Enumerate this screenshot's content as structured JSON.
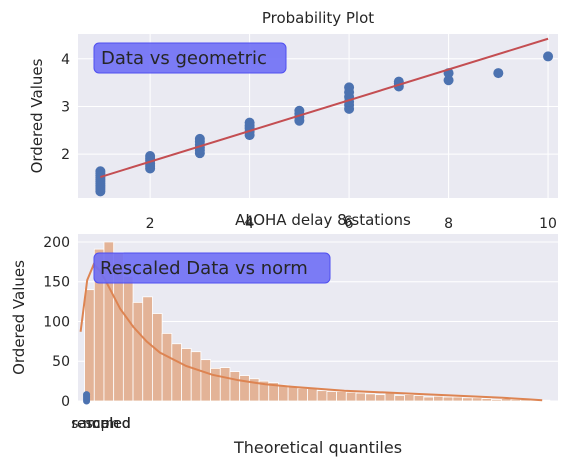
{
  "chart_data": [
    {
      "type": "scatter",
      "title": "Probability Plot",
      "xlabel": "",
      "ylabel": "Ordered Values",
      "annotation": "Data vs geometric",
      "xlim": [
        0.55,
        10.2
      ],
      "ylim": [
        1.08,
        4.52
      ],
      "xticks": [
        2,
        4,
        6,
        8,
        10
      ],
      "yticks": [
        2,
        3,
        4
      ],
      "grid": true,
      "colors": {
        "points": "#4c72b0",
        "fit_line": "#c44e52",
        "annotation_box": "#6f6ff5",
        "background": "#eaeaf2"
      },
      "points": [
        {
          "x": 1,
          "y_values": [
            1.22,
            1.27,
            1.31,
            1.35,
            1.39,
            1.43,
            1.47,
            1.51,
            1.55,
            1.6,
            1.64
          ]
        },
        {
          "x": 2,
          "y_values": [
            1.7,
            1.75,
            1.8,
            1.86,
            1.91,
            1.96
          ]
        },
        {
          "x": 3,
          "y_values": [
            2.02,
            2.08,
            2.14,
            2.2,
            2.26,
            2.32
          ]
        },
        {
          "x": 4,
          "y_values": [
            2.4,
            2.47,
            2.54,
            2.6,
            2.66
          ]
        },
        {
          "x": 5,
          "y_values": [
            2.7,
            2.78,
            2.85,
            2.91
          ]
        },
        {
          "x": 6,
          "y_values": [
            2.95,
            3.03,
            3.1,
            3.2,
            3.3,
            3.4
          ]
        },
        {
          "x": 7,
          "y_values": [
            3.42,
            3.48,
            3.52
          ]
        },
        {
          "x": 8,
          "y_values": [
            3.55,
            3.7
          ]
        },
        {
          "x": 9,
          "y_values": [
            3.7
          ]
        },
        {
          "x": 10,
          "y_values": [
            4.05
          ]
        }
      ],
      "fit_line": {
        "x": [
          1,
          10
        ],
        "y": [
          1.52,
          4.42
        ]
      }
    },
    {
      "type": "bar",
      "title": "ALOHA delay 8 stations",
      "overlapping_title_texts": [
        "4",
        "6"
      ],
      "xlabel": "Theoretical quantiles",
      "ylabel": "Ordered Values",
      "annotation": "Rescaled Data vs norm",
      "x_tick_labels": [
        "sampled",
        "rescaled",
        "norm"
      ],
      "ylim": [
        0,
        210
      ],
      "yticks": [
        0,
        50,
        100,
        150,
        200
      ],
      "grid": true,
      "colors": {
        "bars": "#dd8452",
        "bar_fill": "#e3b397",
        "kde": "#dd8452",
        "norm_points": "#4c72b0",
        "annotation_box": "#6f6ff5",
        "background": "#eaeaf2"
      },
      "bins": {
        "x_start": 0.03,
        "bin_width": 0.0735,
        "counts": [
          140,
          191,
          200,
          187,
          157,
          124,
          131,
          110,
          85,
          72,
          66,
          62,
          52,
          41,
          42,
          37,
          32,
          28,
          25,
          23,
          20,
          18,
          16,
          16,
          13,
          12,
          12,
          11,
          10,
          9,
          8,
          10,
          7,
          8,
          7,
          5,
          6,
          5,
          5,
          4,
          4,
          3,
          2,
          3,
          2,
          2,
          1,
          1
        ]
      },
      "kde": {
        "x": [
          0,
          0.05,
          0.1,
          0.15,
          0.2,
          0.3,
          0.4,
          0.5,
          0.6,
          0.8,
          1.0,
          1.2,
          1.4,
          1.6,
          2.0,
          2.4,
          2.8,
          3.2,
          3.4,
          3.5
        ],
        "y": [
          87,
          152,
          172,
          163,
          148,
          116,
          93,
          75,
          61,
          44,
          33,
          26,
          21,
          18,
          13,
          10,
          7,
          4,
          2,
          1
        ]
      },
      "norm_points_y": [
        0,
        2,
        4,
        6,
        8
      ]
    }
  ]
}
